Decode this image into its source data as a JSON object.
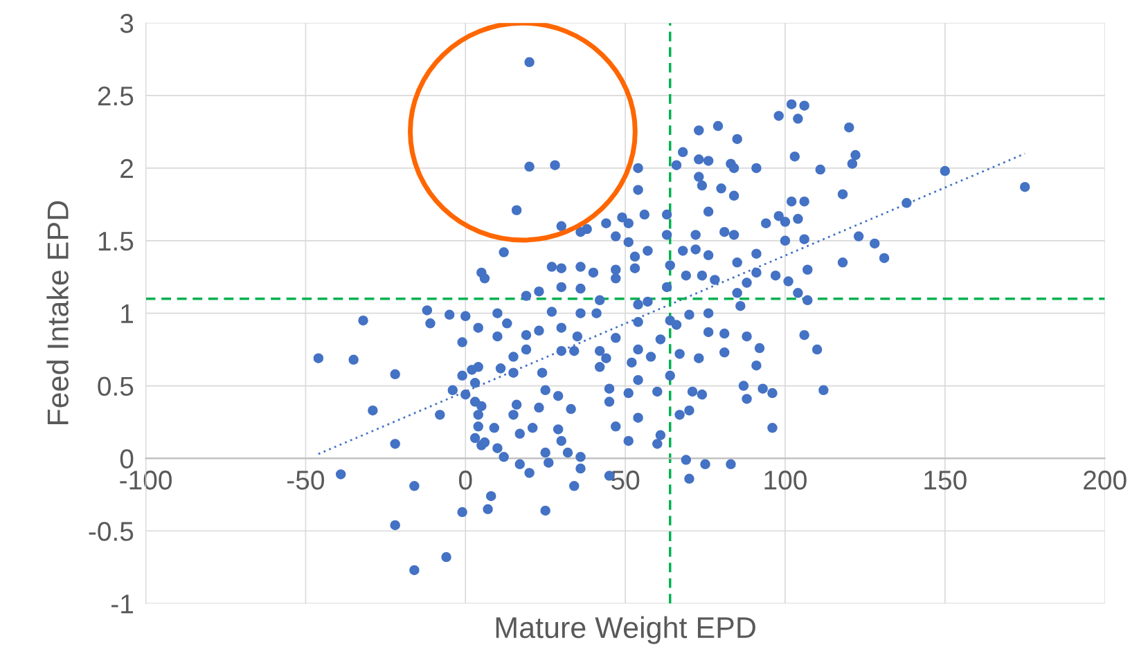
{
  "chart_data": {
    "type": "scatter",
    "xlabel": "Mature Weight EPD",
    "ylabel": "Feed Intake EPD",
    "xlim": [
      -100,
      200
    ],
    "xticks": [
      -100,
      -50,
      0,
      50,
      100,
      150,
      200
    ],
    "ylim": [
      -1,
      3
    ],
    "yticks": [
      -1,
      -0.5,
      0,
      0.5,
      1,
      1.5,
      2,
      2.5,
      3
    ],
    "grid": true,
    "marker": "circle",
    "ref_lines": [
      {
        "axis": "y",
        "value": 1.1,
        "color": "#00b050",
        "line_style": "dashed"
      },
      {
        "axis": "x",
        "value": 64,
        "color": "#00b050",
        "line_style": "dashed"
      }
    ],
    "series": [
      {
        "color": "#4472c4",
        "x": [
          20,
          20,
          28,
          16,
          30,
          12,
          -46,
          -35,
          -32,
          -29,
          -22,
          -22,
          -39,
          -16,
          -22,
          -16,
          -6,
          -1,
          -12,
          -11,
          -5,
          0,
          -8,
          -4,
          -1,
          -1,
          0,
          5,
          6,
          4,
          10,
          13,
          10,
          11,
          4,
          2,
          3,
          3,
          5,
          4,
          4,
          3,
          5,
          6,
          10,
          12,
          9,
          8,
          7,
          15,
          15,
          16,
          15,
          17,
          17,
          20,
          21,
          19,
          19,
          23,
          23,
          19,
          23,
          24,
          25,
          25,
          25,
          26,
          27,
          30,
          27,
          30,
          30,
          30,
          29,
          30,
          29,
          32,
          33,
          34,
          36,
          36,
          34,
          35,
          36,
          36,
          36,
          36,
          38,
          40,
          41,
          42,
          42,
          42,
          44,
          44,
          45,
          45,
          45,
          47,
          47,
          47,
          47,
          47,
          49,
          51,
          51,
          51,
          52,
          51,
          53,
          53,
          54,
          54,
          54,
          54,
          54,
          54,
          54,
          56,
          57,
          57,
          58,
          60,
          60,
          61,
          61,
          63,
          63,
          64,
          63,
          64,
          64,
          66,
          66,
          67,
          67,
          68,
          68,
          69,
          69,
          70,
          70,
          70,
          71,
          72,
          72,
          73,
          73,
          73,
          73,
          74,
          74,
          74,
          75,
          76,
          76,
          76,
          76,
          76,
          78,
          79,
          80,
          81,
          81,
          81,
          83,
          83,
          84,
          85,
          84,
          84,
          85,
          85,
          86,
          87,
          88,
          88,
          88,
          91,
          91,
          91,
          91,
          92,
          93,
          94,
          96,
          96,
          97,
          98,
          98,
          100,
          100,
          101,
          102,
          102,
          103,
          104,
          104,
          104,
          106,
          106,
          106,
          106,
          107,
          107,
          111,
          110,
          112,
          118,
          118,
          120,
          121,
          122,
          123,
          128,
          131,
          138,
          150,
          175
        ],
        "values": [
          2.73,
          2.01,
          2.02,
          1.71,
          1.6,
          1.42,
          0.69,
          0.68,
          0.95,
          0.33,
          0.58,
          0.1,
          -0.11,
          -0.19,
          -0.46,
          -0.77,
          -0.68,
          -0.37,
          1.02,
          0.93,
          0.99,
          0.98,
          0.3,
          0.47,
          0.8,
          0.57,
          0.44,
          1.28,
          1.24,
          0.9,
          1.0,
          0.93,
          0.84,
          0.62,
          0.63,
          0.61,
          0.52,
          0.39,
          0.36,
          0.3,
          0.22,
          0.14,
          0.09,
          0.11,
          0.07,
          0.01,
          0.21,
          -0.26,
          -0.35,
          0.7,
          0.59,
          0.37,
          0.3,
          0.17,
          -0.04,
          -0.1,
          0.21,
          0.75,
          0.85,
          0.88,
          1.15,
          1.12,
          0.35,
          0.59,
          0.47,
          0.04,
          -0.36,
          -0.03,
          1.32,
          1.31,
          1.01,
          1.18,
          0.9,
          0.74,
          0.43,
          0.12,
          0.2,
          0.04,
          0.34,
          -0.19,
          -0.07,
          0.01,
          0.74,
          0.84,
          1.0,
          1.17,
          1.32,
          1.56,
          1.58,
          1.28,
          1.0,
          1.09,
          0.74,
          0.63,
          1.62,
          0.69,
          0.48,
          0.39,
          -0.12,
          0.22,
          0.83,
          1.24,
          1.3,
          1.53,
          1.66,
          1.62,
          1.49,
          0.12,
          0.66,
          0.45,
          1.31,
          1.39,
          1.85,
          2.0,
          1.06,
          0.94,
          0.75,
          0.54,
          0.28,
          1.68,
          1.43,
          1.08,
          0.7,
          0.46,
          0.1,
          0.16,
          0.82,
          1.68,
          1.54,
          1.33,
          1.18,
          0.95,
          0.57,
          0.92,
          2.02,
          0.72,
          0.3,
          2.11,
          1.43,
          1.26,
          -0.01,
          -0.14,
          0.99,
          0.33,
          0.46,
          1.44,
          1.54,
          2.26,
          2.06,
          1.94,
          0.69,
          0.44,
          1.88,
          1.26,
          -0.04,
          0.87,
          1.0,
          1.7,
          2.05,
          1.4,
          1.23,
          2.29,
          1.86,
          1.56,
          0.86,
          0.73,
          2.03,
          -0.04,
          2.0,
          2.2,
          1.81,
          1.54,
          1.35,
          1.14,
          1.05,
          0.5,
          0.41,
          0.84,
          1.21,
          1.28,
          1.41,
          2.0,
          0.64,
          0.76,
          0.48,
          1.62,
          0.45,
          0.21,
          1.26,
          2.36,
          1.67,
          1.63,
          1.5,
          1.22,
          2.44,
          1.77,
          2.08,
          2.34,
          1.65,
          1.14,
          2.43,
          1.77,
          1.51,
          0.85,
          1.3,
          1.09,
          1.99,
          0.75,
          0.47,
          1.82,
          1.35,
          2.28,
          2.03,
          2.09,
          1.53,
          1.48,
          1.38,
          1.76,
          1.98,
          1.87
        ]
      },
      {
        "type": "line",
        "color": "#4472c4",
        "line_style": "dotted",
        "marker": "none",
        "x": [
          -46,
          175
        ],
        "values": [
          0.03,
          2.1
        ]
      }
    ]
  }
}
